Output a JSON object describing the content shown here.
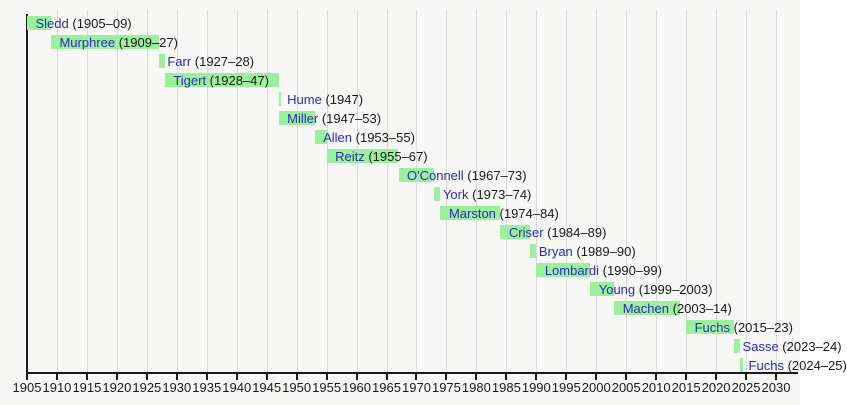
{
  "chart_data": {
    "type": "bar",
    "variant": "horizontal-timeline-gantt",
    "title": "",
    "xlabel": "",
    "ylabel": "",
    "grid": "vertical-on",
    "legend": "none",
    "x_axis": {
      "min": 1905,
      "max": 2030,
      "tick_interval": 5,
      "tick_labels": [
        "1905",
        "1910",
        "1915",
        "1920",
        "1925",
        "1930",
        "1935",
        "1940",
        "1945",
        "1950",
        "1955",
        "1960",
        "1965",
        "1970",
        "1975",
        "1980",
        "1985",
        "1990",
        "1995",
        "2000",
        "2005",
        "2010",
        "2015",
        "2020",
        "2025",
        "2030"
      ]
    },
    "rows": [
      {
        "name": "Sledd",
        "years_label": "(1905–09)",
        "start": 1905,
        "end": 1909
      },
      {
        "name": "Murphree",
        "years_label": "(1909–27)",
        "start": 1909,
        "end": 1927
      },
      {
        "name": "Farr",
        "years_label": "(1927–28)",
        "start": 1927,
        "end": 1928
      },
      {
        "name": "Tigert",
        "years_label": "(1928–47)",
        "start": 1928,
        "end": 1947
      },
      {
        "name": "Hume",
        "years_label": "(1947)",
        "start": 1947,
        "end": 1947.4
      },
      {
        "name": "Miller",
        "years_label": "(1947–53)",
        "start": 1947,
        "end": 1953
      },
      {
        "name": "Allen",
        "years_label": "(1953–55)",
        "start": 1953,
        "end": 1955
      },
      {
        "name": "Reitz",
        "years_label": "(1955–67)",
        "start": 1955,
        "end": 1967
      },
      {
        "name": "O'Connell",
        "years_label": "(1967–73)",
        "start": 1967,
        "end": 1973
      },
      {
        "name": "York",
        "years_label": "(1973–74)",
        "start": 1973,
        "end": 1974
      },
      {
        "name": "Marston",
        "years_label": "(1974–84)",
        "start": 1974,
        "end": 1984
      },
      {
        "name": "Criser",
        "years_label": "(1984–89)",
        "start": 1984,
        "end": 1989
      },
      {
        "name": "Bryan",
        "years_label": "(1989–90)",
        "start": 1989,
        "end": 1990
      },
      {
        "name": "Lombardi",
        "years_label": "(1990–99)",
        "start": 1990,
        "end": 1999
      },
      {
        "name": "Young",
        "years_label": "(1999–2003)",
        "start": 1999,
        "end": 2003
      },
      {
        "name": "Machen",
        "years_label": "(2003–14)",
        "start": 2003,
        "end": 2014
      },
      {
        "name": "Fuchs",
        "years_label": "(2015–23)",
        "start": 2015,
        "end": 2023
      },
      {
        "name": "Sasse",
        "years_label": "(2023–24)",
        "start": 2023,
        "end": 2024
      },
      {
        "name": "Fuchs",
        "years_label": "(2024–25)",
        "start": 2024,
        "end": 2024.5
      }
    ],
    "colors": {
      "bar": "#9BF09B",
      "link_text": "#2B2BC4",
      "year_text": "#1a1a1a",
      "gridline": "#DADADA",
      "axis": "#1a1a1a",
      "background": "#F7F7F5"
    }
  }
}
